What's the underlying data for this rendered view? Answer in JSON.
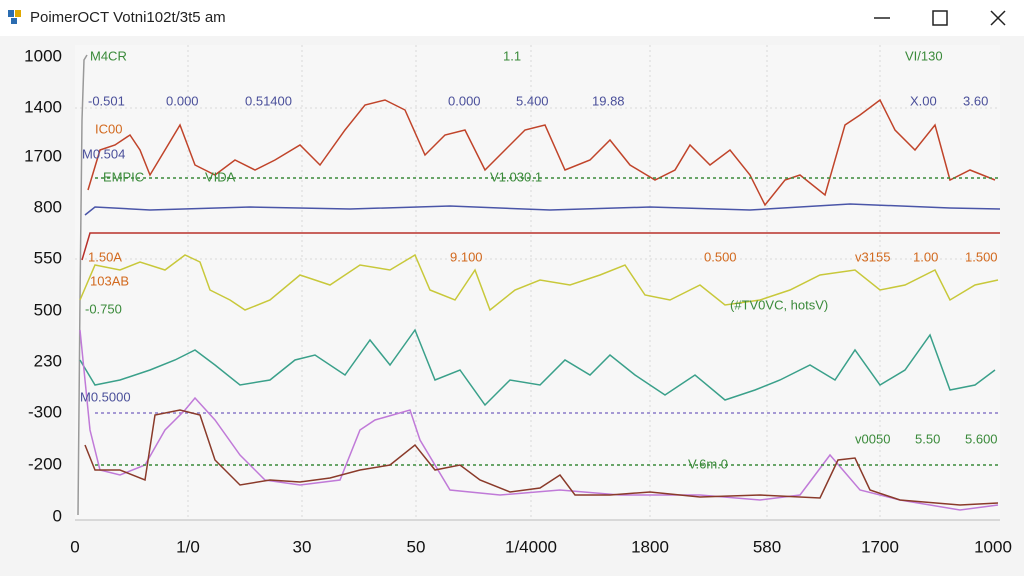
{
  "window": {
    "title": "PoimerOCT Votni102t/3t5 am"
  },
  "y_labels": [
    "1000",
    "1400",
    "1700",
    "800",
    "550",
    "500",
    "230",
    "-300",
    "-200",
    "0"
  ],
  "x_labels": [
    "0",
    "1/0",
    "30",
    "50",
    "1/4000",
    "1800",
    "580",
    "1700",
    "1000"
  ],
  "annotations": [
    "M4CR",
    "1.1",
    "VI/130",
    "-0.501",
    "0.000",
    "0.51400",
    "0.000",
    "5.400",
    "19.88",
    "X.00",
    "3.60",
    "IC00",
    "M0.504",
    "EMPIC",
    "VIDA",
    "V1.030.1",
    "1.50A",
    "9.100",
    "0.500",
    "v3155",
    "1.00",
    "1.500",
    "103AB",
    "-0.750",
    "(#TV0VC, hotsV)",
    "M0.5000",
    "v0050",
    "5.50",
    "5.600",
    "V.6m.0"
  ]
}
